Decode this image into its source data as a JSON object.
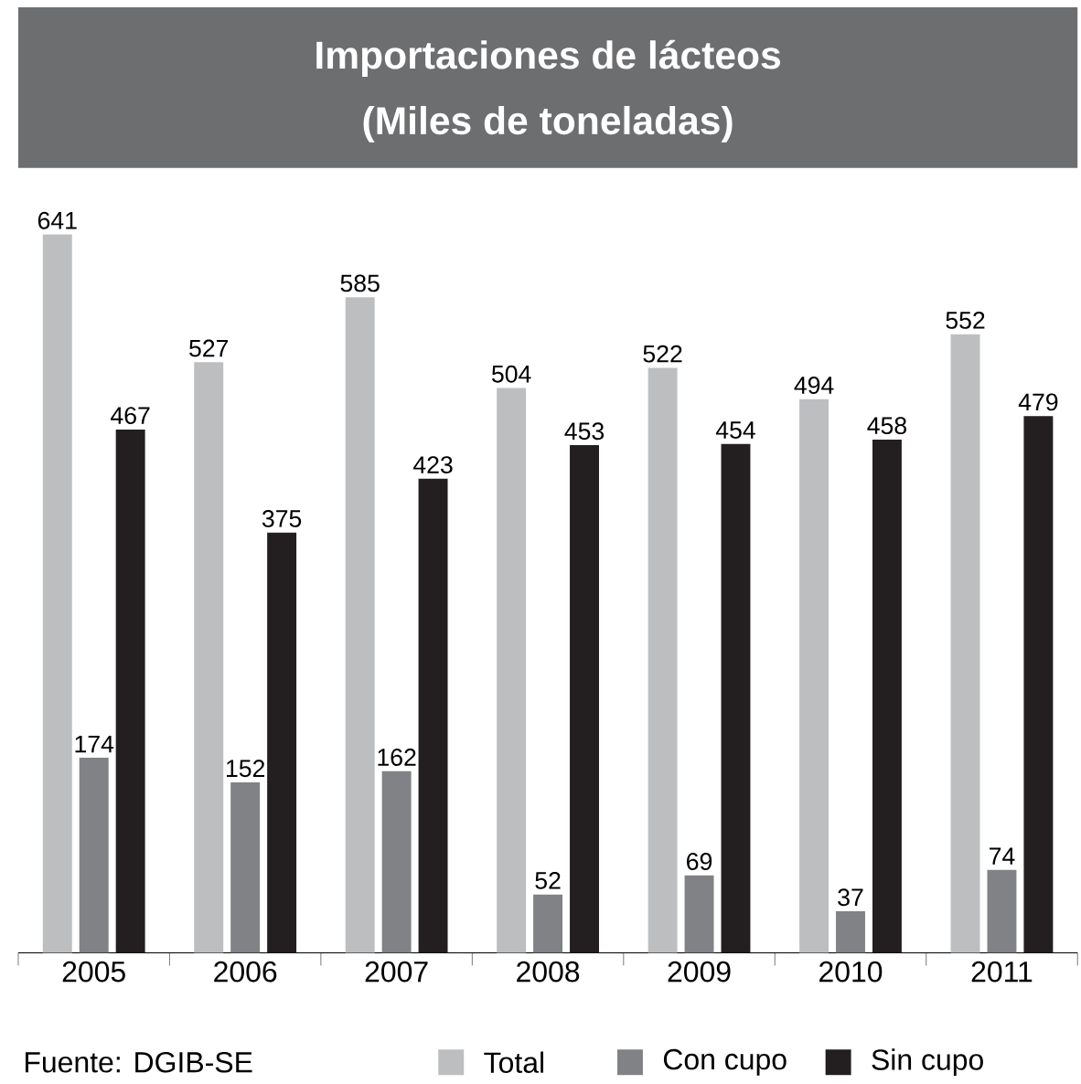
{
  "chart_data": {
    "type": "bar",
    "title": "Importaciones de lácteos",
    "subtitle": "(Miles de toneladas)",
    "categories": [
      "2005",
      "2006",
      "2007",
      "2008",
      "2009",
      "2010",
      "2011"
    ],
    "series": [
      {
        "name": "Total",
        "color": "#bcbec0",
        "values": [
          641,
          527,
          585,
          504,
          522,
          494,
          552
        ]
      },
      {
        "name": "Con cupo",
        "color": "#808285",
        "values": [
          174,
          152,
          162,
          52,
          69,
          37,
          74
        ]
      },
      {
        "name": "Sin cupo",
        "color": "#231f20",
        "values": [
          467,
          375,
          423,
          453,
          454,
          458,
          479
        ]
      }
    ],
    "data_labels": true,
    "legend": "bottom",
    "annotations": [
      "Fuente: DGIB-SE"
    ]
  }
}
